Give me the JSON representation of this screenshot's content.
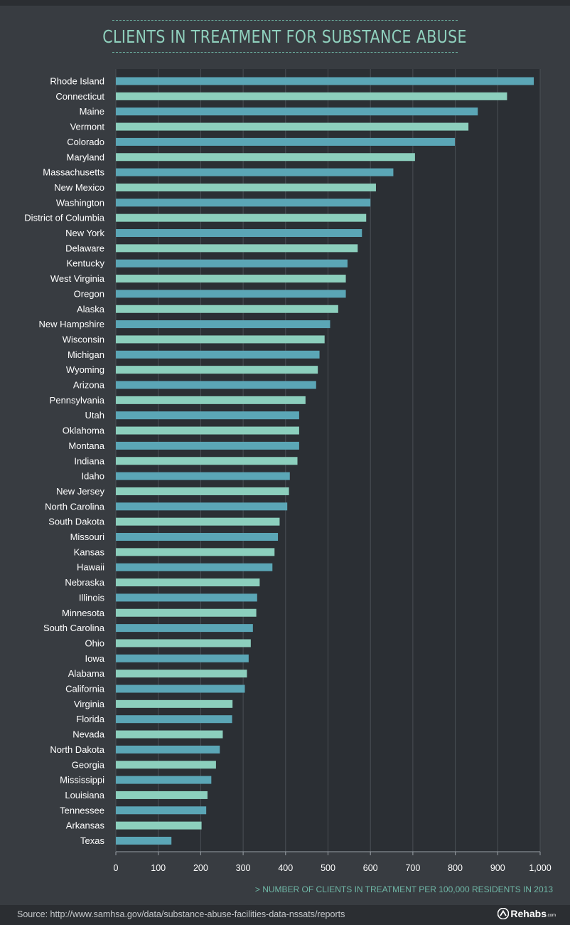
{
  "title": "CLIENTS IN TREATMENT FOR SUBSTANCE ABUSE",
  "axis_note": "> NUMBER OF CLIENTS IN TREATMENT PER 100,000 RESIDENTS IN 2013",
  "source": "Source: http://www.samhsa.gov/data/substance-abuse-facilities-data-nssats/reports",
  "logo": {
    "name": "Rehabs",
    "suffix": ".com"
  },
  "colors": {
    "background": "#383c41",
    "plot_area": "#2b2f34",
    "bar_blue": "#5ba6b6",
    "bar_teal": "#8ccfbd",
    "title": "#8fd0bd",
    "label": "#ffffff"
  },
  "chart_data": {
    "type": "bar",
    "orientation": "horizontal",
    "title": "CLIENTS IN TREATMENT FOR SUBSTANCE ABUSE",
    "xlabel": "> NUMBER OF CLIENTS IN TREATMENT PER 100,000 RESIDENTS IN 2013",
    "ylabel": "",
    "xlim": [
      0,
      1000
    ],
    "x_ticks": [
      "0",
      "100",
      "200",
      "300",
      "400",
      "500",
      "600",
      "700",
      "800",
      "900",
      "1,000"
    ],
    "categories": [
      "Rhode Island",
      "Connecticut",
      "Maine",
      "Vermont",
      "Colorado",
      "Maryland",
      "Massachusetts",
      "New Mexico",
      "Washington",
      "District of Columbia",
      "New York",
      "Delaware",
      "Kentucky",
      "West Virginia",
      "Oregon",
      "Alaska",
      "New Hampshire",
      "Wisconsin",
      "Michigan",
      "Wyoming",
      "Arizona",
      "Pennsylvania",
      "Utah",
      "Oklahoma",
      "Montana",
      "Indiana",
      "Idaho",
      "New Jersey",
      "North Carolina",
      "South Dakota",
      "Missouri",
      "Kansas",
      "Hawaii",
      "Nebraska",
      "Illinois",
      "Minnesota",
      "South Carolina",
      "Ohio",
      "Iowa",
      "Alabama",
      "California",
      "Virginia",
      "Florida",
      "Nevada",
      "North Dakota",
      "Georgia",
      "Mississippi",
      "Louisiana",
      "Tennessee",
      "Arkansas",
      "Texas"
    ],
    "values": [
      985,
      922,
      853,
      831,
      799,
      705,
      654,
      613,
      600,
      590,
      580,
      570,
      546,
      542,
      542,
      524,
      505,
      492,
      480,
      476,
      472,
      447,
      432,
      432,
      432,
      428,
      410,
      408,
      404,
      386,
      382,
      374,
      369,
      339,
      333,
      331,
      323,
      318,
      313,
      309,
      304,
      275,
      274,
      252,
      245,
      236,
      225,
      216,
      213,
      202,
      131
    ],
    "grid": true,
    "legend": "none"
  }
}
